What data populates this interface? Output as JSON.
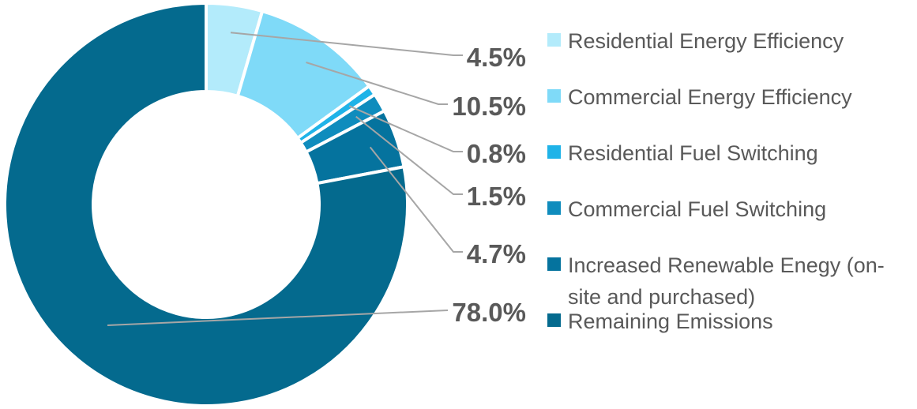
{
  "chart_data": {
    "type": "pie",
    "variant": "donut",
    "title": "",
    "slices": [
      {
        "label": "Residential Energy Efficiency",
        "legend_lines": [
          "Residential Energy Efficiency"
        ],
        "value": 4.5,
        "display": "4.5%",
        "color": "#b3ebfb"
      },
      {
        "label": "Commercial Energy Efficiency",
        "legend_lines": [
          "Commercial Energy Efficiency"
        ],
        "value": 10.5,
        "display": "10.5%",
        "color": "#7fdaf8"
      },
      {
        "label": "Residential Fuel Switching",
        "legend_lines": [
          "Residential Fuel Switching"
        ],
        "value": 0.8,
        "display": "0.8%",
        "color": "#1fb3e8"
      },
      {
        "label": "Commercial Fuel Switching",
        "legend_lines": [
          "Commercial Fuel Switching"
        ],
        "value": 1.5,
        "display": "1.5%",
        "color": "#0f8cbd"
      },
      {
        "label": "Increased Renewable Enegy (on-site and purchased)",
        "legend_lines": [
          "Increased Renewable Enegy (on-",
          "site and purchased)"
        ],
        "value": 4.7,
        "display": "4.7%",
        "color": "#05739e"
      },
      {
        "label": "Remaining Emissions",
        "legend_lines": [
          "Remaining Emissions"
        ],
        "value": 78.0,
        "display": "78.0%",
        "color": "#046a8e"
      }
    ],
    "legend_position": "right",
    "label_color": "#595959",
    "leader_line_color": "#a6a6a6"
  }
}
